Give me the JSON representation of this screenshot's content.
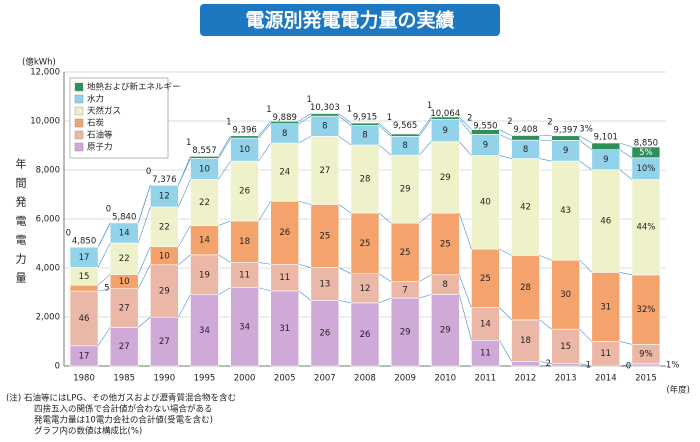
{
  "chart_data": {
    "type": "stacked_bar",
    "title": "電源別発電電力量の実績",
    "y_unit": "(億kWh)",
    "y_axis_label": "年間発電電力量",
    "x_unit": "(年度)",
    "categories": [
      "1980",
      "1985",
      "1990",
      "1995",
      "2000",
      "2005",
      "2007",
      "2008",
      "2009",
      "2010",
      "2011",
      "2012",
      "2013",
      "2014",
      "2015"
    ],
    "totals": {
      "values": [
        4850,
        5840,
        7376,
        8557,
        9396,
        9889,
        10303,
        9915,
        9565,
        10064,
        9550,
        9408,
        9397,
        9101,
        8850
      ],
      "value_labels": [
        "4,850",
        "5,840",
        "7,376",
        "8,557",
        "9,396",
        "9,889",
        "10,303",
        "9,915",
        "9,565",
        "10,064",
        "9,550",
        "9,408",
        "9,397",
        "9,101",
        "8,850"
      ]
    },
    "series": [
      {
        "name": "原子力",
        "color": "#cfa9d8",
        "values": [
          17,
          27,
          27,
          34,
          34,
          31,
          26,
          26,
          29,
          29,
          11,
          2,
          1,
          0,
          1
        ],
        "value_labels": [
          "17",
          "27",
          "27",
          "34",
          "34",
          "31",
          "26",
          "26",
          "29",
          "29",
          "11",
          "2",
          "1",
          "0",
          "1%"
        ]
      },
      {
        "name": "石油等",
        "color": "#ebb7a6",
        "values": [
          46,
          27,
          29,
          19,
          11,
          11,
          13,
          12,
          7,
          8,
          14,
          18,
          15,
          11,
          9
        ],
        "value_labels": [
          "46",
          "27",
          "29",
          "19",
          "11",
          "11",
          "13",
          "12",
          "7",
          "8",
          "14",
          "18",
          "15",
          "11",
          "9%"
        ]
      },
      {
        "name": "石炭",
        "color": "#f5a36c",
        "values": [
          5,
          10,
          10,
          14,
          18,
          26,
          25,
          25,
          25,
          25,
          25,
          28,
          30,
          31,
          32
        ],
        "value_labels": [
          "5",
          "10",
          "10",
          "14",
          "18",
          "26",
          "25",
          "25",
          "25",
          "25",
          "25",
          "28",
          "30",
          "31",
          "32%"
        ]
      },
      {
        "name": "天然ガス",
        "color": "#eef1c9",
        "values": [
          15,
          22,
          22,
          22,
          26,
          24,
          27,
          28,
          29,
          29,
          40,
          42,
          43,
          46,
          44
        ],
        "value_labels": [
          "15",
          "22",
          "22",
          "22",
          "26",
          "24",
          "27",
          "28",
          "29",
          "29",
          "40",
          "42",
          "43",
          "46",
          "44%"
        ]
      },
      {
        "name": "水力",
        "color": "#92d2ea",
        "values": [
          17,
          14,
          12,
          10,
          10,
          8,
          8,
          8,
          8,
          9,
          9,
          8,
          9,
          9,
          10
        ],
        "value_labels": [
          "17",
          "14",
          "12",
          "10",
          "10",
          "8",
          "8",
          "8",
          "8",
          "9",
          "9",
          "8",
          "9",
          "9",
          "10%"
        ]
      },
      {
        "name": "地熱および新エネルギー",
        "color": "#2f8f5b",
        "values": [
          0,
          0,
          0,
          1,
          1,
          1,
          1,
          1,
          1,
          1,
          2,
          2,
          2,
          3,
          5
        ],
        "value_labels": [
          "0",
          "0",
          "0",
          "1",
          "1",
          "1",
          "1",
          "1",
          "1",
          "1",
          "2",
          "2",
          "2",
          "3%",
          "5%"
        ]
      }
    ],
    "ylim": [
      0,
      12000
    ],
    "yticks": [
      0,
      {
        "value": 2000,
        "label": "2,000"
      },
      {
        "value": 4000,
        "label": "4,000"
      },
      {
        "value": 6000,
        "label": "6,000"
      },
      {
        "value": 8000,
        "label": "8,000"
      },
      {
        "value": 10000,
        "label": "10,000"
      },
      {
        "value": 12000,
        "label": "12,000"
      }
    ],
    "grid": true,
    "legend": "upper-left",
    "notes_label": "(注)",
    "notes": [
      "石油等にはLPG、その他ガスおよび瀝青質混合物を含む",
      "四捨五入の関係で合計値が合わない場合がある",
      "発電電力量は10電力会社の合計値(受電を含む)",
      "グラフ内の数値は構成比(%)"
    ]
  }
}
